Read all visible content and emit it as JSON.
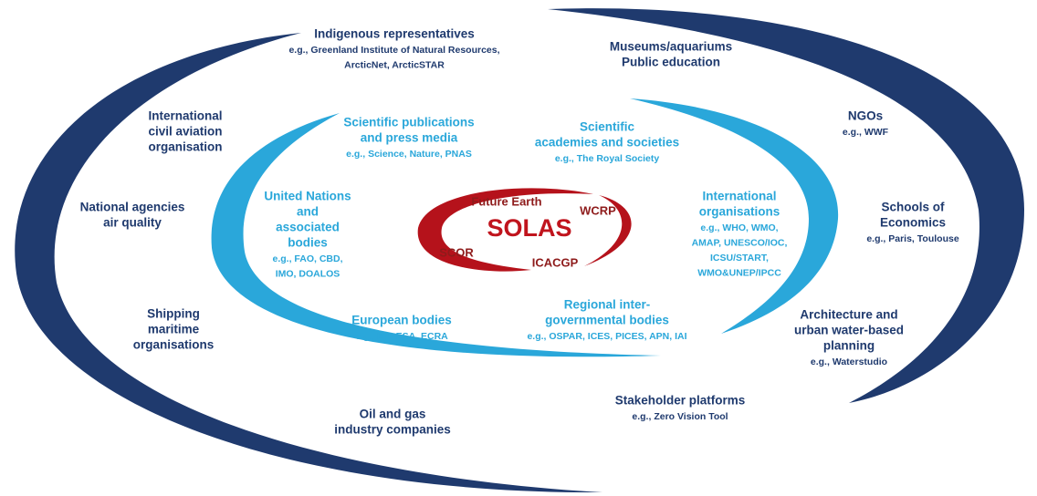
{
  "center": {
    "title": "SOLAS",
    "partners": [
      "Future Earth",
      "WCRP",
      "SCOR",
      "ICACGP"
    ]
  },
  "outer_ring": [
    {
      "title": [
        "Indigenous representatives"
      ],
      "examples": [
        "e.g., Greenland Institute of Natural Resources,",
        "ArcticNet, ArcticSTAR"
      ]
    },
    {
      "title": [
        "Museums/aquariums",
        "Public education"
      ],
      "examples": []
    },
    {
      "title": [
        "International",
        "civil aviation",
        "organisation"
      ],
      "examples": []
    },
    {
      "title": [
        "NGOs"
      ],
      "examples": [
        "e.g., WWF"
      ]
    },
    {
      "title": [
        "National agencies",
        "air quality"
      ],
      "examples": []
    },
    {
      "title": [
        "Schools of",
        "Economics"
      ],
      "examples": [
        "e.g., Paris, Toulouse"
      ]
    },
    {
      "title": [
        "Shipping",
        "maritime",
        "organisations"
      ],
      "examples": []
    },
    {
      "title": [
        "Architecture and",
        "urban water-based",
        "planning"
      ],
      "examples": [
        "e.g., Waterstudio"
      ]
    },
    {
      "title": [
        "Oil and gas",
        "industry companies"
      ],
      "examples": []
    },
    {
      "title": [
        "Stakeholder platforms"
      ],
      "examples": [
        "e.g., Zero Vision Tool"
      ]
    }
  ],
  "inner_ring": [
    {
      "title": [
        "Scientific publications",
        "and press media"
      ],
      "examples": [
        "e.g., Science, Nature, PNAS"
      ]
    },
    {
      "title": [
        "Scientific",
        "academies and societies"
      ],
      "examples": [
        "e.g., The Royal Society"
      ]
    },
    {
      "title": [
        "United Nations",
        "and",
        "associated",
        "bodies"
      ],
      "examples": [
        "e.g., FAO, CBD,",
        "IMO, DOALOS"
      ]
    },
    {
      "title": [
        "International",
        "organisations"
      ],
      "examples": [
        "e.g., WHO, WMO,",
        "AMAP, UNESCO/IOC,",
        "ICSU/START,",
        "WMO&UNEP/IPCC"
      ]
    },
    {
      "title": [
        "European bodies"
      ],
      "examples": [
        "e.g., EU, ESA, ECRA"
      ]
    },
    {
      "title": [
        "Regional inter-",
        "governmental bodies"
      ],
      "examples": [
        "e.g., OSPAR, ICES, PICES, APN, IAI"
      ]
    }
  ]
}
